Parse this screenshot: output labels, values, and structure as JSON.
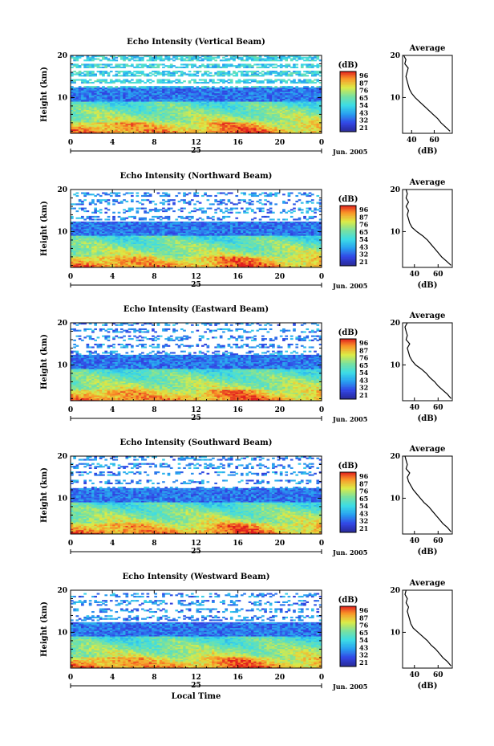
{
  "chart_data": [
    {
      "type": "heatmap",
      "title": "Echo Intensity (Vertical Beam)",
      "ylabel": "Height (km)",
      "x_ticks": [
        "0",
        "4",
        "8",
        "12",
        "16",
        "20",
        "0"
      ],
      "y_ticks": [
        "20",
        "10"
      ],
      "xlim": [
        0,
        24
      ],
      "ylim": [
        1.5,
        20
      ],
      "date_day": "25",
      "date_month": "Jun. 2005",
      "colorbar": {
        "unit": "(dB)",
        "ticks": [
          "96",
          "87",
          "76",
          "65",
          "54",
          "43",
          "32",
          "21"
        ],
        "range": [
          21,
          96
        ]
      },
      "average": {
        "title": "Average",
        "xlabel": "(dB)",
        "x_ticks": [
          "40",
          "60"
        ],
        "y_ticks": [
          "20",
          "10"
        ],
        "xlim": [
          32,
          76
        ],
        "profile": [
          [
            2,
            74
          ],
          [
            3,
            70
          ],
          [
            4,
            66
          ],
          [
            5,
            63
          ],
          [
            6,
            59
          ],
          [
            7,
            55
          ],
          [
            8,
            51
          ],
          [
            9,
            47
          ],
          [
            10,
            43
          ],
          [
            11,
            40
          ],
          [
            12,
            38
          ],
          [
            13,
            37
          ],
          [
            14,
            36
          ],
          [
            15,
            35
          ],
          [
            16,
            36
          ],
          [
            17,
            37
          ],
          [
            18,
            34
          ],
          [
            19,
            35
          ],
          [
            20,
            33
          ]
        ]
      }
    },
    {
      "type": "heatmap",
      "title": "Echo Intensity (Northward Beam)",
      "ylabel": "Height (km)",
      "x_ticks": [
        "0",
        "4",
        "8",
        "12",
        "16",
        "20",
        "0"
      ],
      "y_ticks": [
        "20",
        "10"
      ],
      "xlim": [
        0,
        24
      ],
      "ylim": [
        1.5,
        20
      ],
      "date_day": "25",
      "date_month": "Jun. 2005",
      "colorbar": {
        "unit": "(dB)",
        "ticks": [
          "96",
          "87",
          "76",
          "65",
          "54",
          "43",
          "32",
          "21"
        ],
        "range": [
          21,
          96
        ]
      },
      "average": {
        "title": "Average",
        "xlabel": "(dB)",
        "x_ticks": [
          "40",
          "60"
        ],
        "y_ticks": [
          "20",
          "10"
        ],
        "xlim": [
          30,
          72
        ],
        "profile": [
          [
            2,
            71
          ],
          [
            3,
            67
          ],
          [
            4,
            63
          ],
          [
            5,
            60
          ],
          [
            6,
            57
          ],
          [
            7,
            54
          ],
          [
            8,
            51
          ],
          [
            9,
            47
          ],
          [
            10,
            42
          ],
          [
            11,
            38
          ],
          [
            12,
            36
          ],
          [
            13,
            35
          ],
          [
            14,
            34
          ],
          [
            15,
            35
          ],
          [
            16,
            33
          ],
          [
            17,
            35
          ],
          [
            18,
            33
          ],
          [
            19,
            34
          ],
          [
            20,
            33
          ]
        ]
      }
    },
    {
      "type": "heatmap",
      "title": "Echo Intensity (Eastward Beam)",
      "ylabel": "Height (km)",
      "x_ticks": [
        "0",
        "4",
        "8",
        "12",
        "16",
        "20",
        "0"
      ],
      "y_ticks": [
        "20",
        "10"
      ],
      "xlim": [
        0,
        24
      ],
      "ylim": [
        1.5,
        20
      ],
      "date_day": "25",
      "date_month": "Jun. 2005",
      "colorbar": {
        "unit": "(dB)",
        "ticks": [
          "96",
          "87",
          "76",
          "65",
          "54",
          "43",
          "32",
          "21"
        ],
        "range": [
          21,
          96
        ]
      },
      "average": {
        "title": "Average",
        "xlabel": "(dB)",
        "x_ticks": [
          "40",
          "60"
        ],
        "y_ticks": [
          "20",
          "10"
        ],
        "xlim": [
          30,
          72
        ],
        "profile": [
          [
            2,
            71
          ],
          [
            3,
            68
          ],
          [
            4,
            64
          ],
          [
            5,
            60
          ],
          [
            6,
            57
          ],
          [
            7,
            53
          ],
          [
            8,
            50
          ],
          [
            9,
            46
          ],
          [
            10,
            41
          ],
          [
            11,
            38
          ],
          [
            12,
            36
          ],
          [
            13,
            35
          ],
          [
            14,
            34
          ],
          [
            15,
            36
          ],
          [
            16,
            33
          ],
          [
            17,
            34
          ],
          [
            18,
            33
          ],
          [
            19,
            32
          ],
          [
            20,
            34
          ]
        ]
      }
    },
    {
      "type": "heatmap",
      "title": "Echo Intensity (Southward Beam)",
      "ylabel": "Height (km)",
      "x_ticks": [
        "0",
        "4",
        "8",
        "12",
        "16",
        "20",
        "0"
      ],
      "y_ticks": [
        "20",
        "10"
      ],
      "xlim": [
        0,
        24
      ],
      "ylim": [
        1.5,
        20
      ],
      "date_day": "25",
      "date_month": "Jun. 2005",
      "colorbar": {
        "unit": "(dB)",
        "ticks": [
          "96",
          "87",
          "76",
          "65",
          "54",
          "43",
          "32",
          "21"
        ],
        "range": [
          21,
          96
        ]
      },
      "average": {
        "title": "Average",
        "xlabel": "(dB)",
        "x_ticks": [
          "40",
          "60"
        ],
        "y_ticks": [
          "20",
          "10"
        ],
        "xlim": [
          30,
          72
        ],
        "profile": [
          [
            2,
            71
          ],
          [
            3,
            68
          ],
          [
            4,
            64
          ],
          [
            5,
            61
          ],
          [
            6,
            58
          ],
          [
            7,
            55
          ],
          [
            8,
            52
          ],
          [
            9,
            48
          ],
          [
            10,
            45
          ],
          [
            11,
            42
          ],
          [
            12,
            39
          ],
          [
            13,
            37
          ],
          [
            14,
            35
          ],
          [
            15,
            34
          ],
          [
            16,
            36
          ],
          [
            17,
            33
          ],
          [
            18,
            34
          ],
          [
            19,
            33
          ],
          [
            20,
            32
          ]
        ]
      }
    },
    {
      "type": "heatmap",
      "title": "Echo Intensity (Westward Beam)",
      "ylabel": "Height (km)",
      "x_ticks": [
        "0",
        "4",
        "8",
        "12",
        "16",
        "20",
        "0"
      ],
      "y_ticks": [
        "20",
        "10"
      ],
      "xlim": [
        0,
        24
      ],
      "ylim": [
        1.5,
        20
      ],
      "date_day": "25",
      "date_month": "Jun. 2005",
      "xlabel": "Local Time",
      "colorbar": {
        "unit": "(dB)",
        "ticks": [
          "96",
          "87",
          "76",
          "65",
          "54",
          "43",
          "32",
          "21"
        ],
        "range": [
          21,
          96
        ]
      },
      "average": {
        "title": "Average",
        "xlabel": "(dB)",
        "x_ticks": [
          "40",
          "60"
        ],
        "y_ticks": [
          "20",
          "10"
        ],
        "xlim": [
          30,
          72
        ],
        "profile": [
          [
            2,
            71
          ],
          [
            3,
            68
          ],
          [
            4,
            64
          ],
          [
            5,
            61
          ],
          [
            6,
            58
          ],
          [
            7,
            54
          ],
          [
            8,
            51
          ],
          [
            9,
            47
          ],
          [
            10,
            43
          ],
          [
            11,
            39
          ],
          [
            12,
            37
          ],
          [
            13,
            36
          ],
          [
            14,
            35
          ],
          [
            15,
            34
          ],
          [
            16,
            35
          ],
          [
            17,
            33
          ],
          [
            18,
            34
          ],
          [
            19,
            32
          ],
          [
            20,
            33
          ]
        ]
      }
    }
  ]
}
